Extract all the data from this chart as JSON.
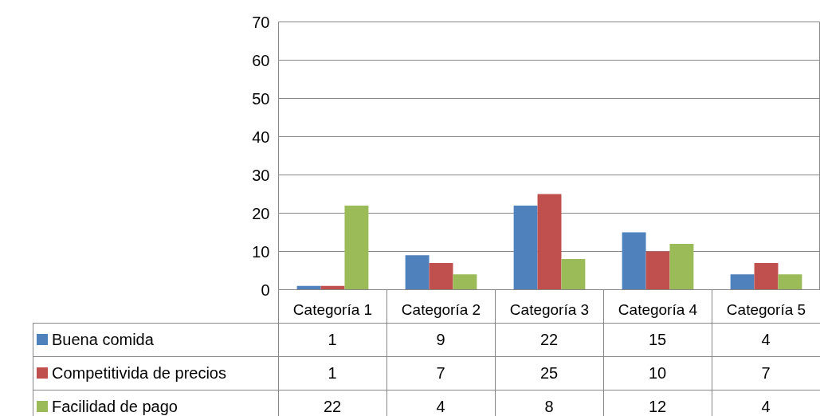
{
  "chart_data": {
    "type": "bar",
    "categories": [
      "Categoría 1",
      "Categoría 2",
      "Categoría 3",
      "Categoría 4",
      "Categoría 5"
    ],
    "series": [
      {
        "name": "Buena comida",
        "color": "#4f81bd",
        "values": [
          1,
          9,
          22,
          15,
          4
        ]
      },
      {
        "name": "Competitivida de precios",
        "color": "#c0504d",
        "values": [
          1,
          7,
          25,
          10,
          7
        ]
      },
      {
        "name": "Facilidad de pago",
        "color": "#9bbb59",
        "values": [
          22,
          4,
          8,
          12,
          4
        ]
      }
    ],
    "ylim": [
      0,
      70
    ],
    "yticks": [
      0,
      10,
      20,
      30,
      40,
      50,
      60,
      70
    ],
    "grid": "y",
    "legend": "bottom",
    "data_labels": true
  }
}
